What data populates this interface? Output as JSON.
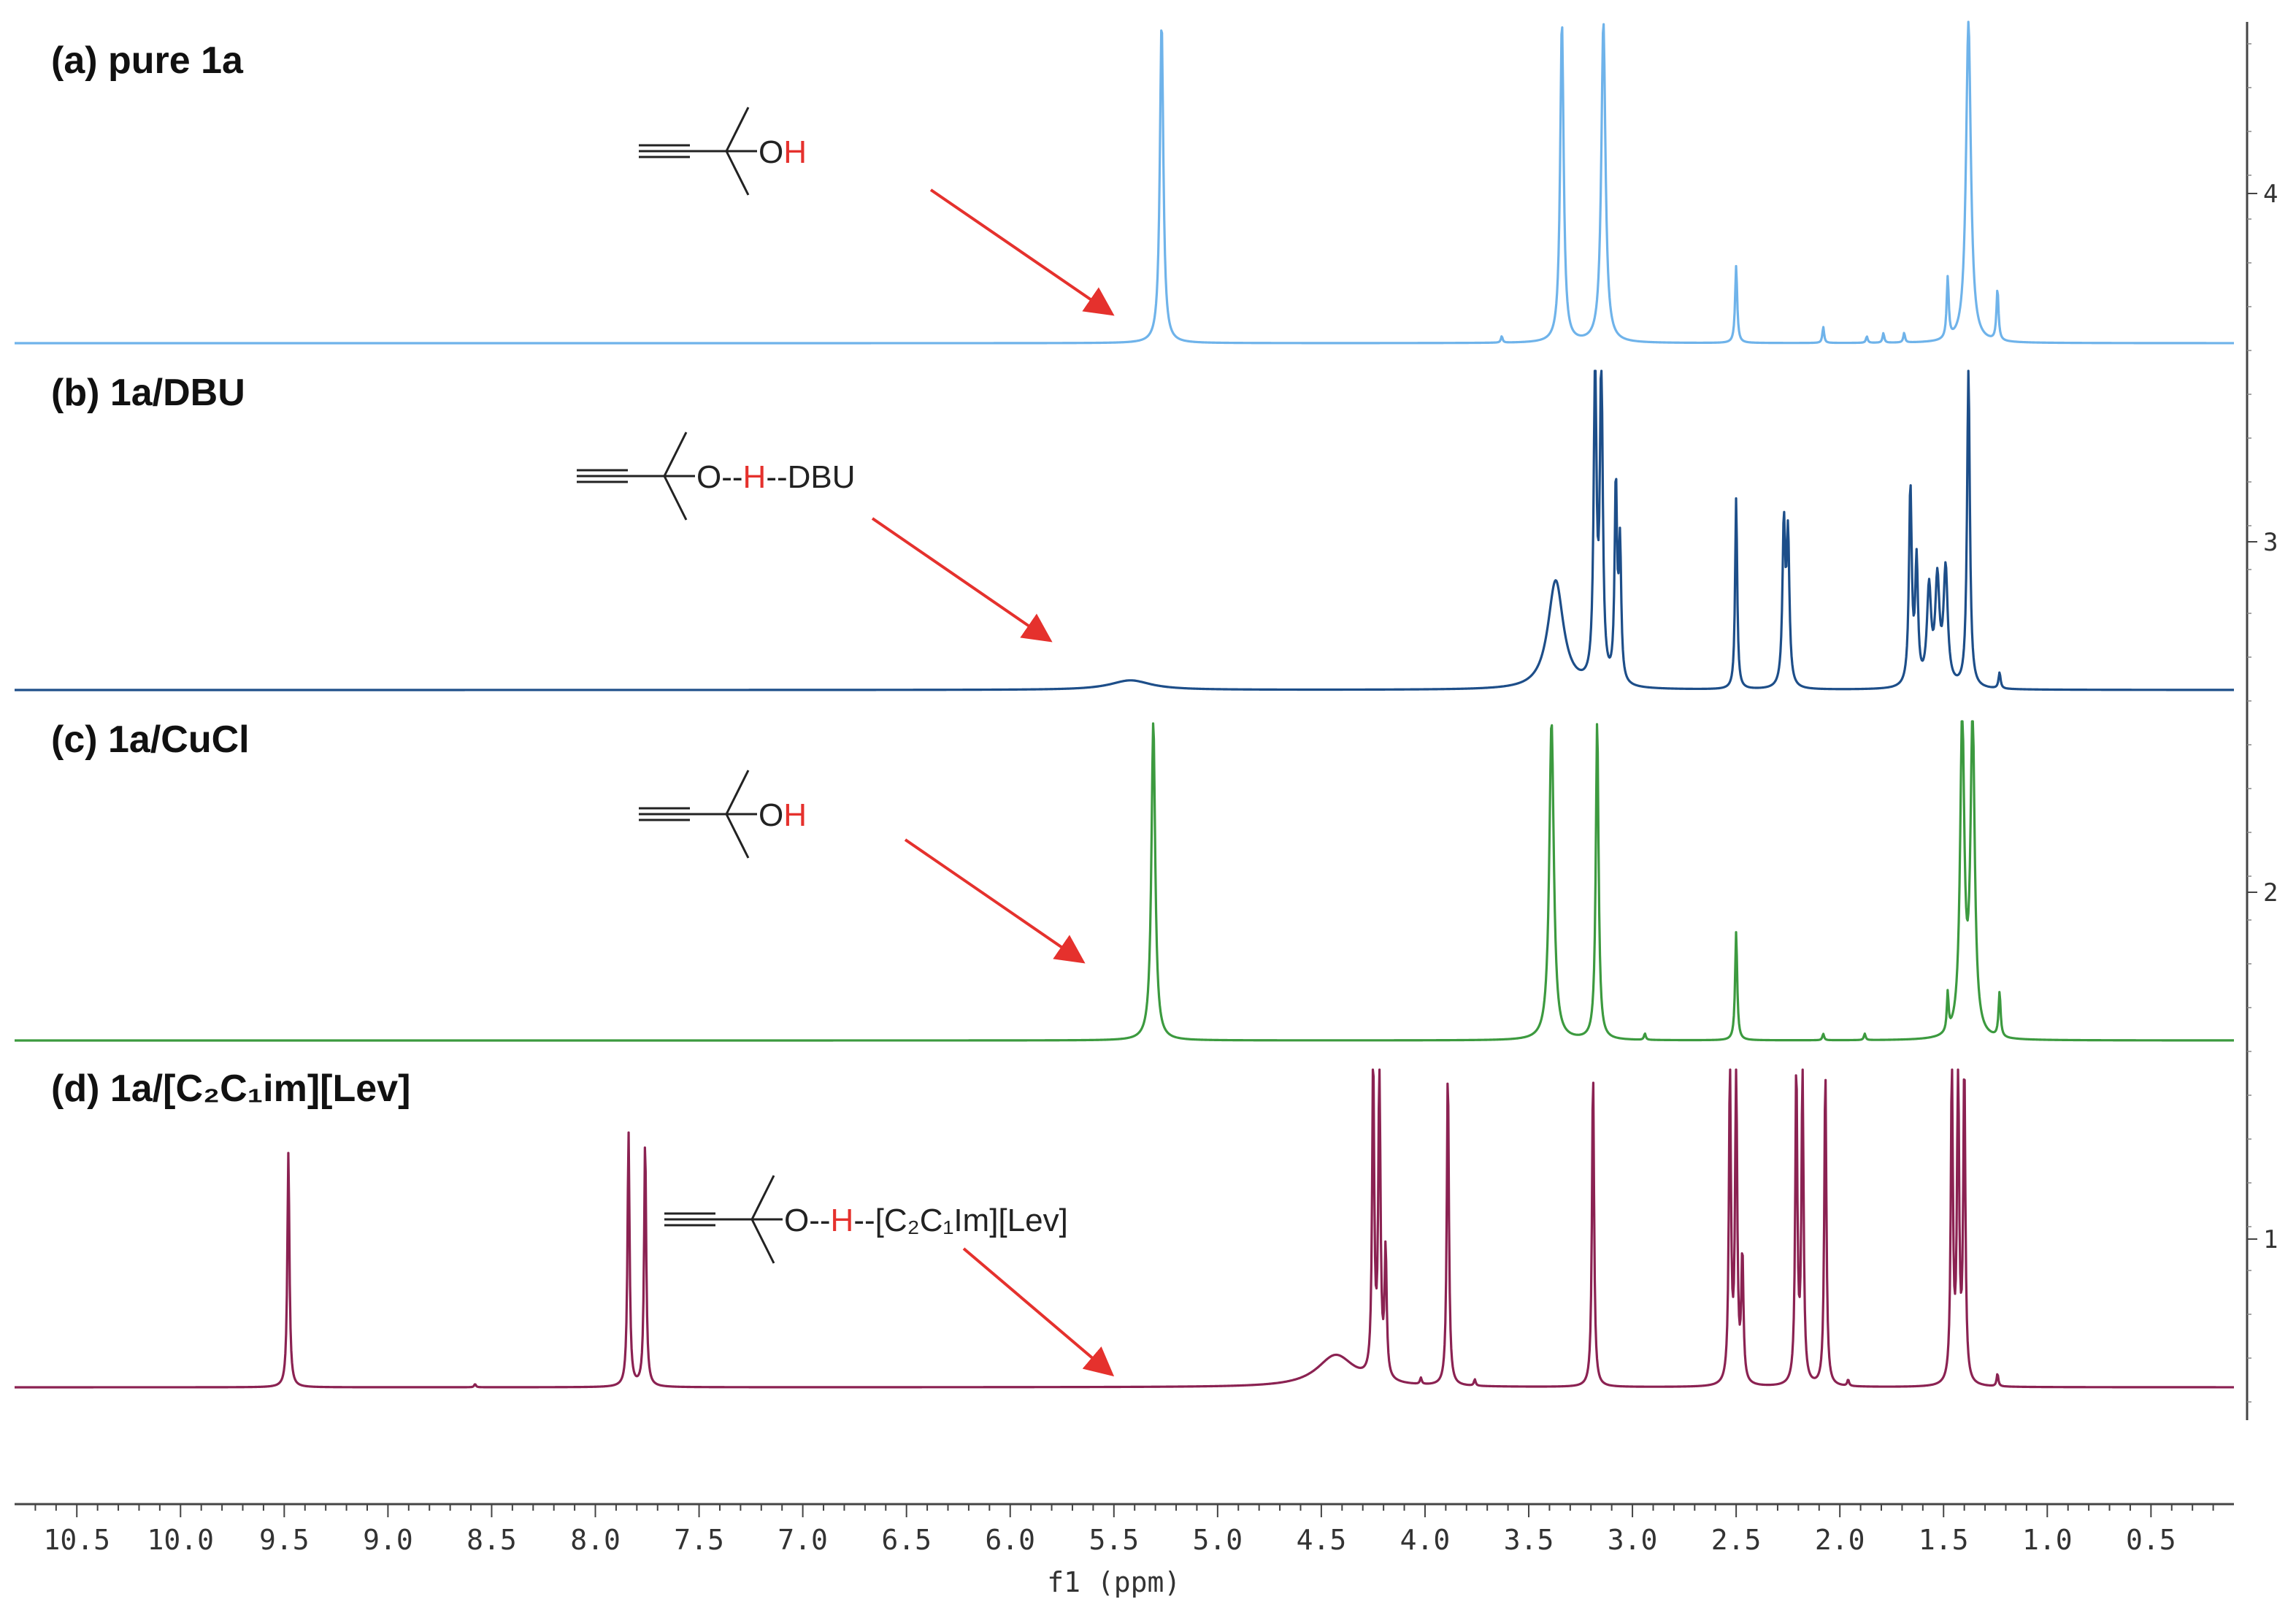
{
  "chart_data": {
    "type": "line",
    "xlabel": "f1 (ppm)",
    "xlim": [
      10.8,
      0.1
    ],
    "x_ticks": [
      "10.5",
      "10.0",
      "9.5",
      "9.0",
      "8.5",
      "8.0",
      "7.5",
      "7.0",
      "6.5",
      "6.0",
      "5.5",
      "5.0",
      "4.5",
      "4.0",
      "3.5",
      "3.0",
      "2.5",
      "2.0",
      "1.5",
      "1.0",
      "0.5"
    ],
    "stack_ticks": [
      "4",
      "3",
      "2",
      "1"
    ],
    "series": [
      {
        "name": "(a) pure 1a",
        "color": "#6fb3ea",
        "annotation": {
          "pre": "O",
          "h": "H",
          "post": ""
        },
        "peaks": [
          {
            "x": 5.27,
            "h": 1.0,
            "w": 0.01
          },
          {
            "x": 3.34,
            "h": 1.0,
            "w": 0.01
          },
          {
            "x": 3.14,
            "h": 1.0,
            "w": 0.012
          },
          {
            "x": 2.5,
            "h": 0.24,
            "w": 0.006
          },
          {
            "x": 2.08,
            "h": 0.05,
            "w": 0.005
          },
          {
            "x": 1.87,
            "h": 0.02,
            "w": 0.005
          },
          {
            "x": 1.79,
            "h": 0.03,
            "w": 0.005
          },
          {
            "x": 1.69,
            "h": 0.03,
            "w": 0.005
          },
          {
            "x": 1.48,
            "h": 0.19,
            "w": 0.006
          },
          {
            "x": 1.38,
            "h": 1.0,
            "w": 0.014
          },
          {
            "x": 1.24,
            "h": 0.16,
            "w": 0.006
          },
          {
            "x": 3.63,
            "h": 0.02,
            "w": 0.005
          }
        ]
      },
      {
        "name": "(b) 1a/DBU",
        "color": "#1d4e89",
        "annotation": {
          "pre": "O--",
          "h": "H",
          "post": "--DBU"
        },
        "peaks": [
          {
            "x": 5.42,
            "h": 0.03,
            "w": 0.12
          },
          {
            "x": 3.37,
            "h": 0.34,
            "w": 0.045
          },
          {
            "x": 3.18,
            "h": 1.0,
            "w": 0.008
          },
          {
            "x": 3.15,
            "h": 1.0,
            "w": 0.008
          },
          {
            "x": 3.08,
            "h": 0.62,
            "w": 0.007
          },
          {
            "x": 3.06,
            "h": 0.42,
            "w": 0.007
          },
          {
            "x": 2.5,
            "h": 0.6,
            "w": 0.006
          },
          {
            "x": 2.27,
            "h": 0.5,
            "w": 0.008
          },
          {
            "x": 2.25,
            "h": 0.46,
            "w": 0.008
          },
          {
            "x": 1.66,
            "h": 0.62,
            "w": 0.008
          },
          {
            "x": 1.63,
            "h": 0.38,
            "w": 0.008
          },
          {
            "x": 1.57,
            "h": 0.3,
            "w": 0.012
          },
          {
            "x": 1.53,
            "h": 0.32,
            "w": 0.012
          },
          {
            "x": 1.49,
            "h": 0.36,
            "w": 0.012
          },
          {
            "x": 1.38,
            "h": 1.0,
            "w": 0.008
          },
          {
            "x": 1.23,
            "h": 0.05,
            "w": 0.006
          }
        ]
      },
      {
        "name": "(c) 1a/CuCl",
        "color": "#3c9a3f",
        "annotation": {
          "pre": "O",
          "h": "H",
          "post": ""
        },
        "peaks": [
          {
            "x": 5.31,
            "h": 1.0,
            "w": 0.011
          },
          {
            "x": 3.39,
            "h": 1.0,
            "w": 0.013
          },
          {
            "x": 3.17,
            "h": 1.0,
            "w": 0.008
          },
          {
            "x": 2.94,
            "h": 0.02,
            "w": 0.005
          },
          {
            "x": 2.5,
            "h": 0.34,
            "w": 0.006
          },
          {
            "x": 2.08,
            "h": 0.02,
            "w": 0.005
          },
          {
            "x": 1.88,
            "h": 0.02,
            "w": 0.005
          },
          {
            "x": 1.48,
            "h": 0.12,
            "w": 0.005
          },
          {
            "x": 1.41,
            "h": 1.0,
            "w": 0.012
          },
          {
            "x": 1.36,
            "h": 1.0,
            "w": 0.012
          },
          {
            "x": 1.23,
            "h": 0.14,
            "w": 0.006
          }
        ]
      },
      {
        "name": "(d) 1a/[C₂C₁im][Lev]",
        "color": "#8b2252",
        "annotation": {
          "pre": "O--",
          "h": "H",
          "post": "--[C₂C₁Im][Lev]"
        },
        "peaks": [
          {
            "x": 9.48,
            "h": 0.74,
            "w": 0.006
          },
          {
            "x": 8.58,
            "h": 0.01,
            "w": 0.005
          },
          {
            "x": 7.84,
            "h": 0.8,
            "w": 0.006
          },
          {
            "x": 7.76,
            "h": 0.78,
            "w": 0.006
          },
          {
            "x": 4.43,
            "h": 0.1,
            "w": 0.11
          },
          {
            "x": 4.25,
            "h": 1.0,
            "w": 0.006
          },
          {
            "x": 4.22,
            "h": 1.0,
            "w": 0.006
          },
          {
            "x": 4.19,
            "h": 0.4,
            "w": 0.006
          },
          {
            "x": 4.02,
            "h": 0.02,
            "w": 0.005
          },
          {
            "x": 3.89,
            "h": 1.0,
            "w": 0.006
          },
          {
            "x": 3.76,
            "h": 0.02,
            "w": 0.005
          },
          {
            "x": 3.19,
            "h": 1.0,
            "w": 0.006
          },
          {
            "x": 2.53,
            "h": 1.0,
            "w": 0.006
          },
          {
            "x": 2.5,
            "h": 1.0,
            "w": 0.006
          },
          {
            "x": 2.47,
            "h": 0.4,
            "w": 0.006
          },
          {
            "x": 2.21,
            "h": 1.0,
            "w": 0.006
          },
          {
            "x": 2.18,
            "h": 1.0,
            "w": 0.006
          },
          {
            "x": 2.07,
            "h": 1.0,
            "w": 0.006
          },
          {
            "x": 1.96,
            "h": 0.02,
            "w": 0.005
          },
          {
            "x": 1.46,
            "h": 1.0,
            "w": 0.006
          },
          {
            "x": 1.43,
            "h": 1.0,
            "w": 0.006
          },
          {
            "x": 1.4,
            "h": 1.0,
            "w": 0.006
          },
          {
            "x": 1.24,
            "h": 0.04,
            "w": 0.005
          }
        ]
      }
    ]
  }
}
